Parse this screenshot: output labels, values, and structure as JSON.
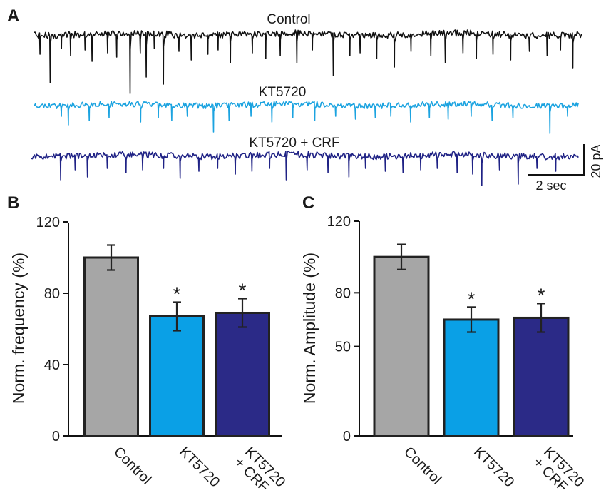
{
  "panels": {
    "a": {
      "letter": "A",
      "traces": [
        {
          "label": "Control",
          "color": "#111111"
        },
        {
          "label": "KT5720",
          "color": "#1ba3e0"
        },
        {
          "label": "KT5720 + CRF",
          "color": "#1f2285"
        }
      ],
      "scale_bar": {
        "current_label": "20 pA",
        "time_label": "2 sec"
      }
    },
    "b": {
      "letter": "B"
    },
    "c": {
      "letter": "C"
    }
  },
  "chart_data": [
    {
      "type": "bar",
      "panel": "B",
      "title": "",
      "xlabel": "",
      "ylabel": "Norm. frequency (%)",
      "categories": [
        "Control",
        "KT5720",
        "KT5720\n+ CRF"
      ],
      "values": [
        100,
        67,
        69
      ],
      "errors": [
        7,
        8,
        8
      ],
      "significance": [
        "",
        "*",
        "*"
      ],
      "colors": [
        "#a6a6a6",
        "#0aa0e6",
        "#2b2a87"
      ],
      "ylim": [
        0,
        120
      ],
      "yticks": [
        0,
        40,
        80,
        120
      ]
    },
    {
      "type": "bar",
      "panel": "C",
      "title": "",
      "xlabel": "",
      "ylabel": "Norm. Amplitude (%)",
      "categories": [
        "Control",
        "KT5720",
        "KT5720\n+ CRF"
      ],
      "values": [
        100,
        65,
        66
      ],
      "errors": [
        7,
        7,
        8
      ],
      "significance": [
        "",
        "*",
        "*"
      ],
      "colors": [
        "#a6a6a6",
        "#0aa0e6",
        "#2b2a87"
      ],
      "ylim": [
        0,
        120
      ],
      "yticks": [
        0,
        50,
        80,
        120
      ]
    }
  ]
}
